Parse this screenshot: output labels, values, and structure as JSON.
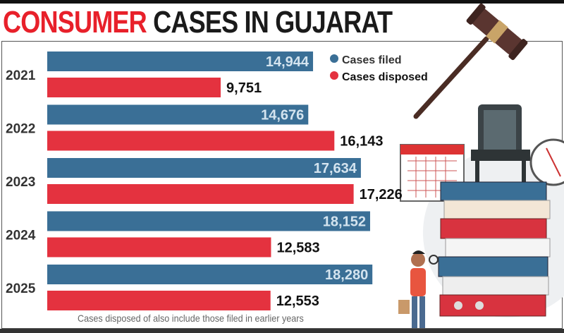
{
  "title": {
    "part1": "CONSUMER",
    "part2": "CASES IN GUJARAT"
  },
  "footnote": "Cases disposed of also include those filed in earlier years",
  "colors": {
    "filed": "#3a6f96",
    "disposed": "#e4323f",
    "title_red": "#e8202a"
  },
  "chart_data": {
    "type": "bar",
    "orientation": "horizontal",
    "title": "CONSUMER CASES IN GUJARAT",
    "categories": [
      "2021",
      "2022",
      "2023",
      "2024",
      "2025"
    ],
    "series": [
      {
        "name": "Cases filed",
        "values": [
          14944,
          14676,
          17634,
          18152,
          18280
        ],
        "labels": [
          "14,944",
          "14,676",
          "17,634",
          "18,152",
          "18,280"
        ]
      },
      {
        "name": "Cases disposed",
        "values": [
          9751,
          16143,
          17226,
          12583,
          12553
        ],
        "labels": [
          "9,751",
          "16,143",
          "17,226",
          "12,583",
          "12,553"
        ]
      }
    ],
    "legend_placement": "top-right",
    "grid": false,
    "xlim": [
      0,
      20000
    ],
    "annotation": "Cases disposed of also include those filed in earlier years"
  }
}
